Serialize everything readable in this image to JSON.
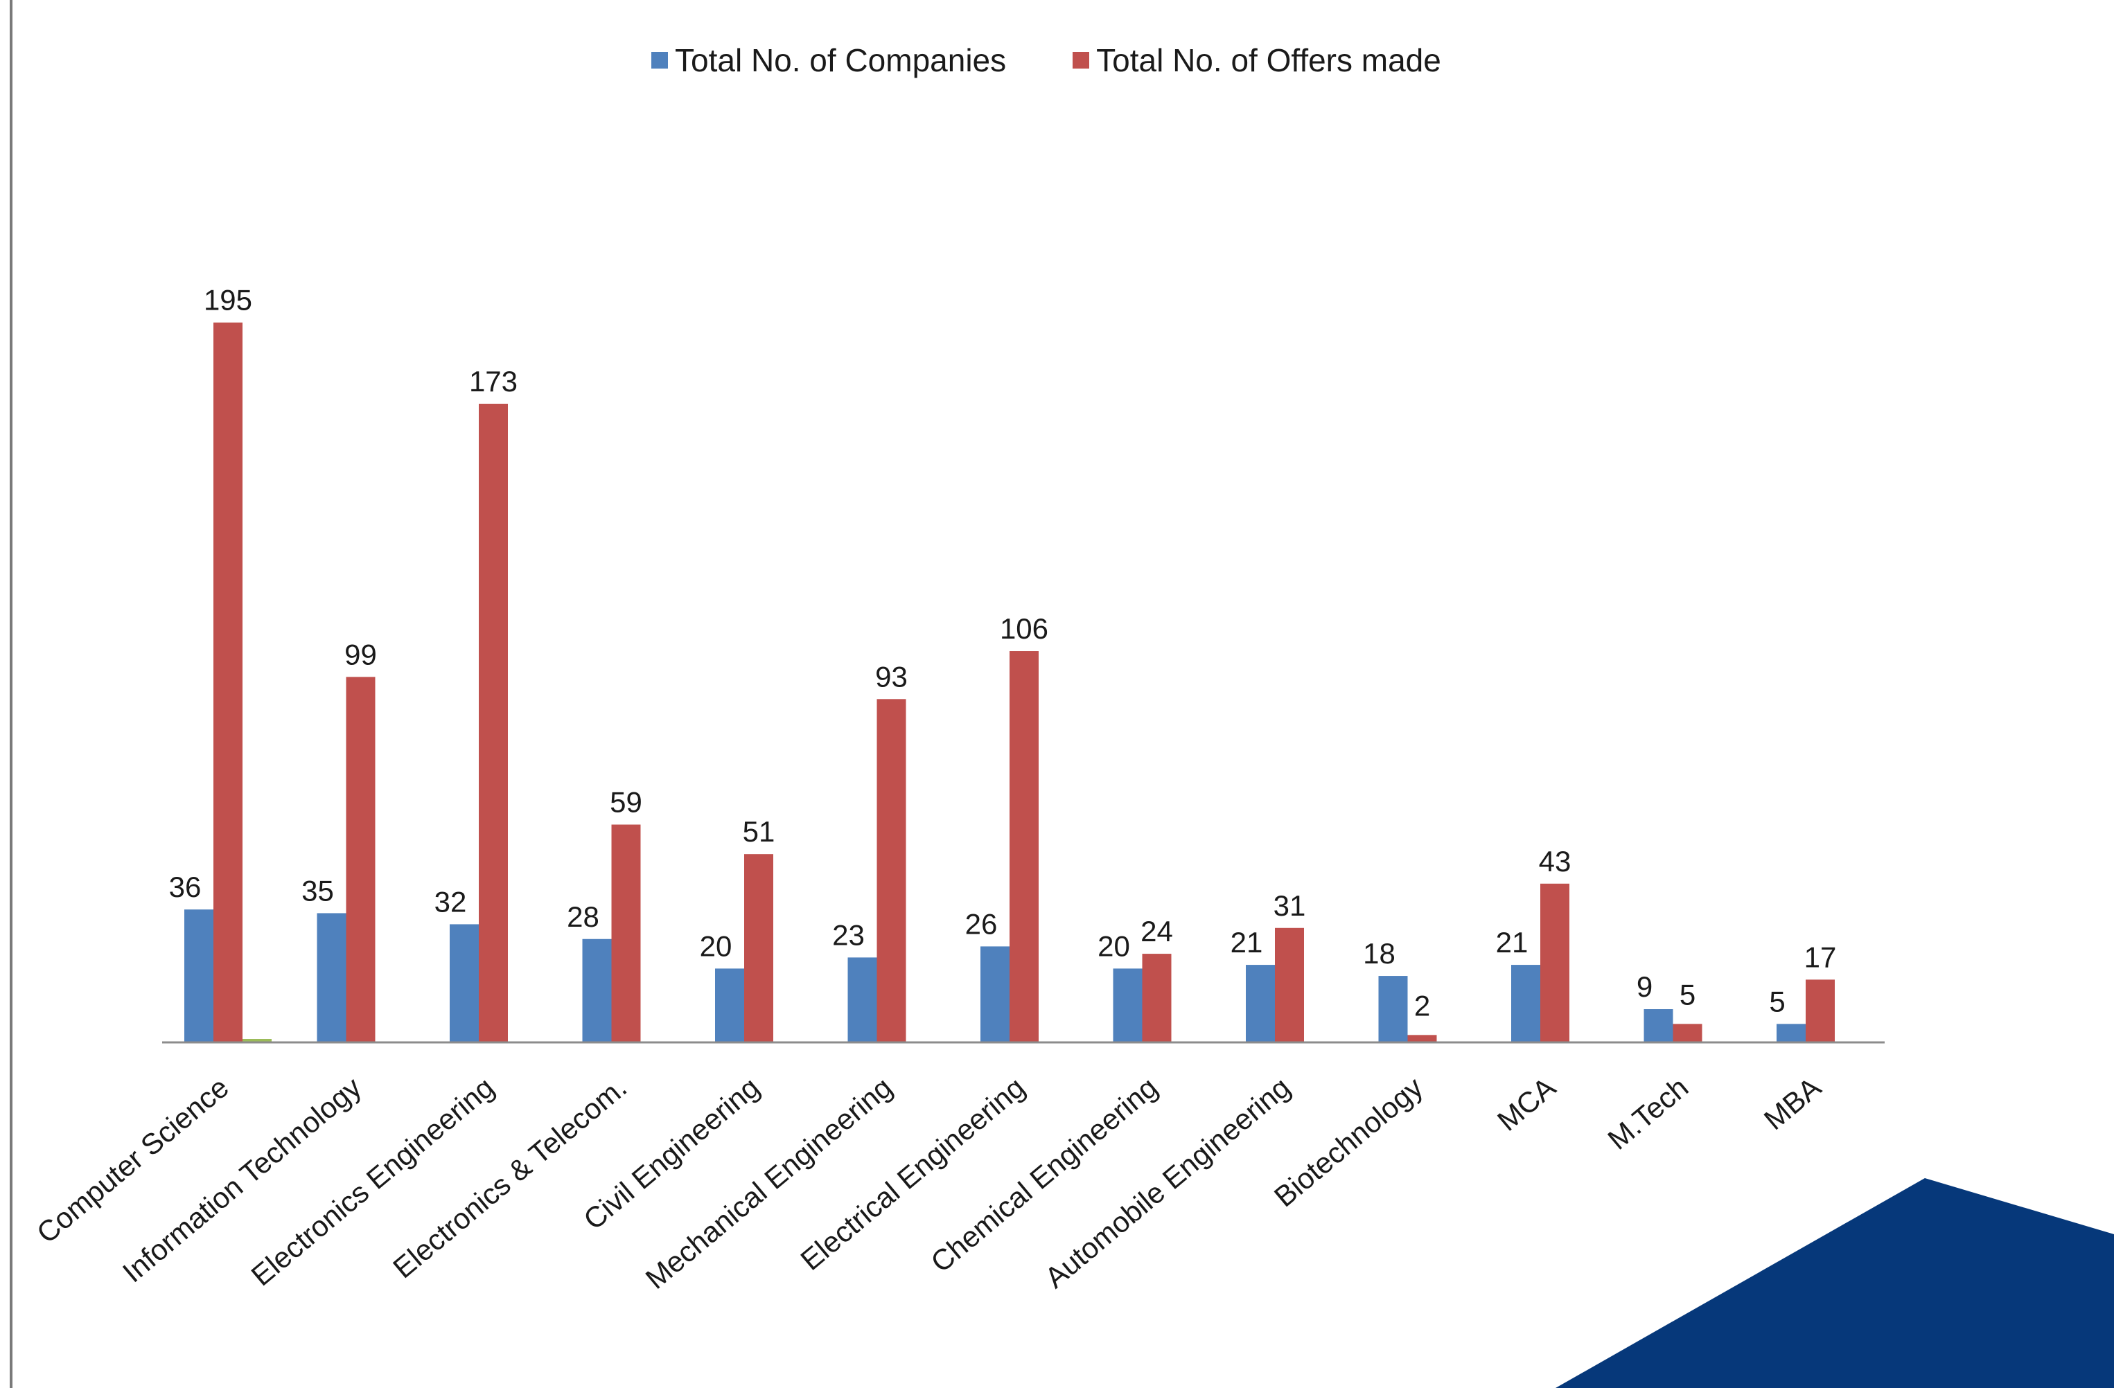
{
  "chart_data": {
    "type": "bar",
    "categories": [
      "Computer Science",
      "Information Technology",
      "Electronics Engineering",
      "Electronics & Telecom.",
      "Civil Engineering",
      "Mechanical Engineering",
      "Electrical Engineering",
      "Chemical Engineering",
      "Automobile Engineering",
      "Biotechnology",
      "MCA",
      "M.Tech",
      "MBA"
    ],
    "series": [
      {
        "name": "Total No. of Companies",
        "color": "#4F81BD",
        "values": [
          36,
          35,
          32,
          28,
          20,
          23,
          26,
          20,
          21,
          18,
          21,
          9,
          5
        ]
      },
      {
        "name": "Total No. of Offers made",
        "color": "#C0504D",
        "values": [
          195,
          99,
          173,
          59,
          51,
          93,
          106,
          24,
          31,
          2,
          43,
          5,
          17
        ]
      }
    ],
    "title": "",
    "xlabel": "",
    "ylabel": "",
    "ylim": [
      0,
      200
    ],
    "grid": false,
    "legend_position": "top"
  },
  "decoration": {
    "corner_shape_color": "#06387A",
    "axis_color": "#8c8c8c",
    "stray_bar_color": "#9BBB59"
  }
}
